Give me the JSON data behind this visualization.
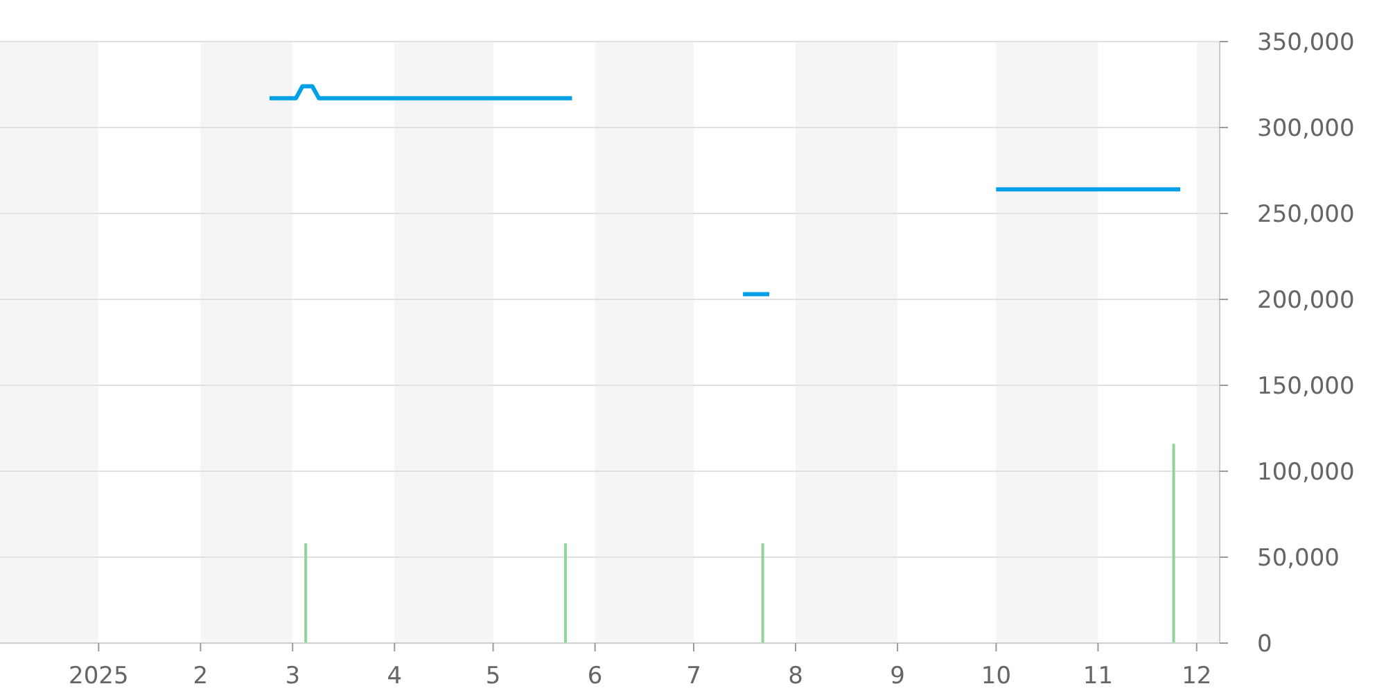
{
  "chart_data": {
    "type": "line",
    "xlim": [
      "2024-12-02",
      "2025-12-08"
    ],
    "xticks": [
      {
        "value": "2025-01-01",
        "label": "2025"
      },
      {
        "value": "2025-02-01",
        "label": "2"
      },
      {
        "value": "2025-03-01",
        "label": "3"
      },
      {
        "value": "2025-04-01",
        "label": "4"
      },
      {
        "value": "2025-05-01",
        "label": "5"
      },
      {
        "value": "2025-06-01",
        "label": "6"
      },
      {
        "value": "2025-07-01",
        "label": "7"
      },
      {
        "value": "2025-08-01",
        "label": "8"
      },
      {
        "value": "2025-09-01",
        "label": "9"
      },
      {
        "value": "2025-10-01",
        "label": "10"
      },
      {
        "value": "2025-11-01",
        "label": "11"
      },
      {
        "value": "2025-12-01",
        "label": "12"
      }
    ],
    "ylim": [
      0,
      350000
    ],
    "yticks": [
      {
        "value": 0,
        "label": "0"
      },
      {
        "value": 50000,
        "label": "50,000"
      },
      {
        "value": 100000,
        "label": "100,000"
      },
      {
        "value": 150000,
        "label": "150,000"
      },
      {
        "value": 200000,
        "label": "200,000"
      },
      {
        "value": 250000,
        "label": "250,000"
      },
      {
        "value": 300000,
        "label": "300,000"
      },
      {
        "value": 350000,
        "label": "350,000"
      }
    ],
    "grid": "y",
    "bands": [
      {
        "axis": "x",
        "from": "2024-12-02",
        "to": "2025-01-01",
        "color": "#f5f5f5"
      },
      {
        "axis": "x",
        "from": "2025-02-01",
        "to": "2025-03-01",
        "color": "#f5f5f5"
      },
      {
        "axis": "x",
        "from": "2025-04-01",
        "to": "2025-05-01",
        "color": "#f5f5f5"
      },
      {
        "axis": "x",
        "from": "2025-06-01",
        "to": "2025-07-01",
        "color": "#f5f5f5"
      },
      {
        "axis": "x",
        "from": "2025-08-01",
        "to": "2025-09-01",
        "color": "#f5f5f5"
      },
      {
        "axis": "x",
        "from": "2025-10-01",
        "to": "2025-11-01",
        "color": "#f5f5f5"
      },
      {
        "axis": "x",
        "from": "2025-12-01",
        "to": "2025-12-08",
        "color": "#f5f5f5"
      }
    ],
    "series": [
      {
        "type": "bar",
        "color": "#8fd49a",
        "x": [
          "2025-03-05",
          "2025-05-23",
          "2025-07-22",
          "2025-11-24"
        ],
        "values": [
          58000,
          58000,
          58000,
          116000
        ]
      },
      {
        "color": "#00a0e9",
        "x": [
          "2025-02-22",
          "2025-03-02",
          "2025-03-04",
          "2025-03-07",
          "2025-03-09",
          "2025-05-25",
          "2025-06-20",
          "2025-07-16",
          "2025-07-24",
          "2025-09-01",
          "2025-10-01",
          "2025-11-26"
        ],
        "values": [
          317000,
          317000,
          324000,
          324000,
          317000,
          317000,
          null,
          203000,
          203000,
          null,
          264000,
          264000
        ]
      }
    ]
  }
}
